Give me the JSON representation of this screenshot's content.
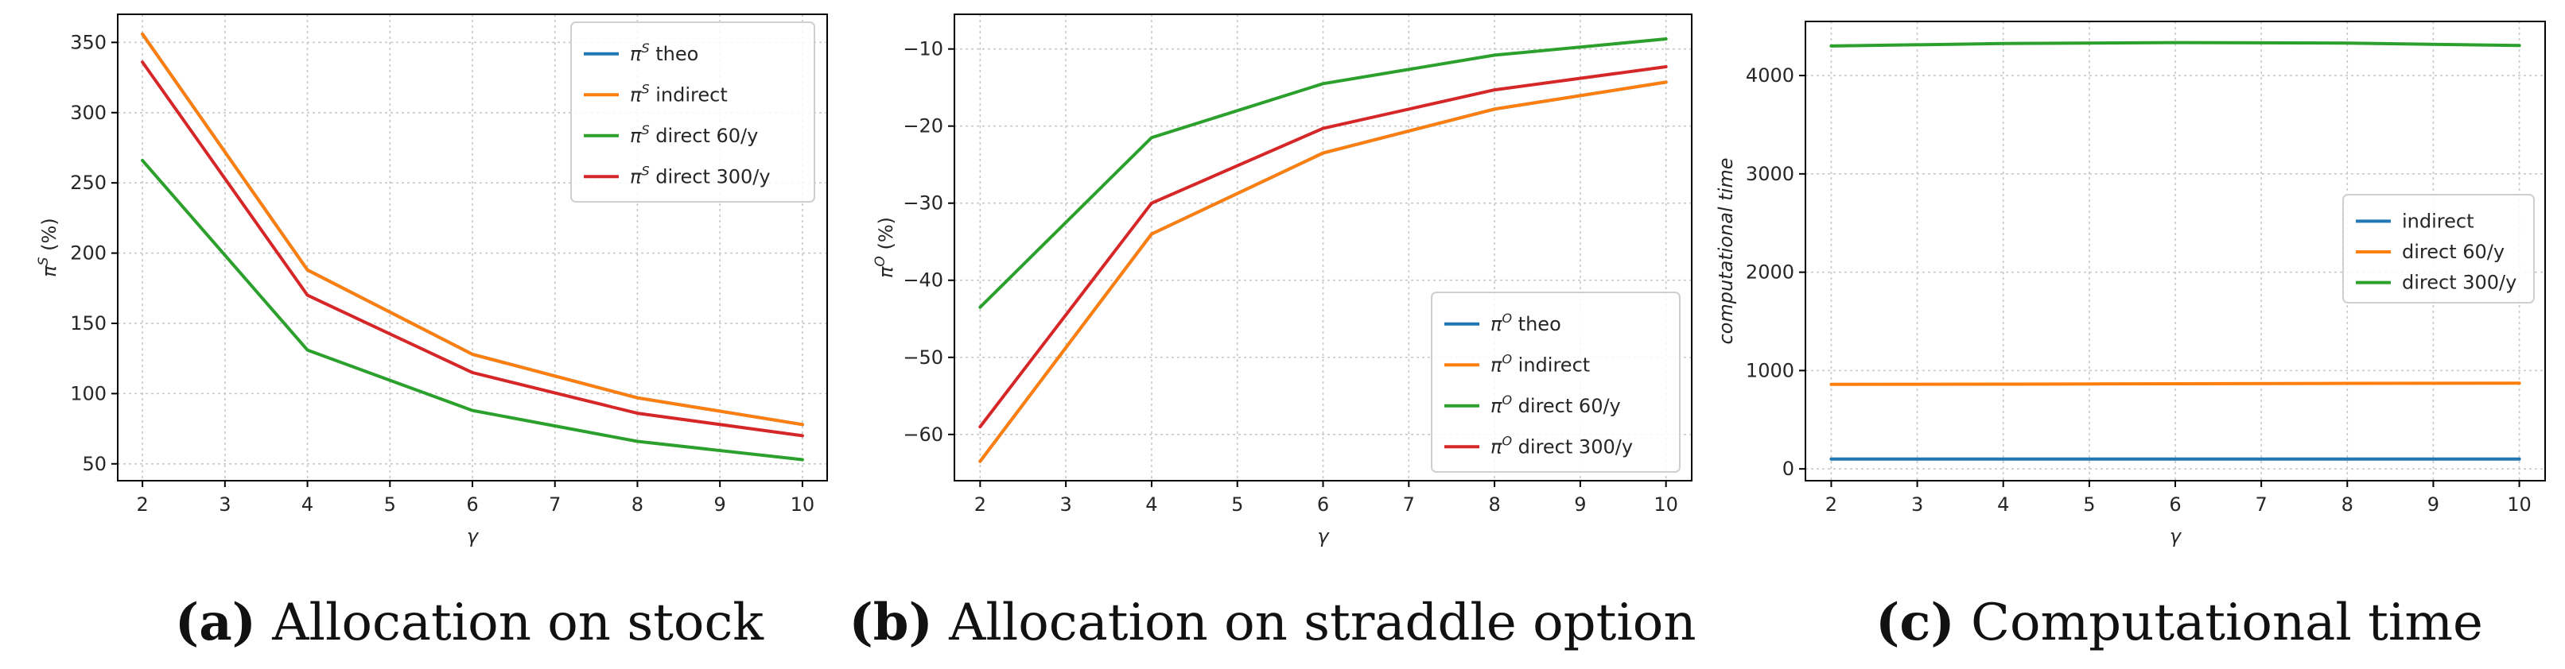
{
  "colors": {
    "theo": "#1f77b4",
    "indirect": "#ff7f0e",
    "direct60": "#2ca02c",
    "direct300": "#d62728"
  },
  "chart_data": [
    {
      "id": "a",
      "type": "line",
      "caption_letter": "(a)",
      "caption_text": " Allocation on stock",
      "xlabel": "γ",
      "ylabel": "π^S (%)",
      "xlim": [
        1.7,
        10.3
      ],
      "ylim": [
        38,
        370
      ],
      "xticks": [
        "2",
        "3",
        "4",
        "5",
        "6",
        "7",
        "8",
        "9",
        "10"
      ],
      "yticks": [
        "50",
        "100",
        "150",
        "200",
        "250",
        "300",
        "350"
      ],
      "legend_position": "upper right",
      "x": [
        2,
        4,
        6,
        8,
        10
      ],
      "series": [
        {
          "name": "π^S theo",
          "legend_main": "π",
          "legend_sup": "S",
          "legend_rest": " theo",
          "color_key": "theo",
          "values": [
            356,
            188,
            128,
            97,
            78
          ]
        },
        {
          "name": "π^S indirect",
          "legend_main": "π",
          "legend_sup": "S",
          "legend_rest": " indirect",
          "color_key": "indirect",
          "values": [
            356,
            188,
            128,
            97,
            78
          ]
        },
        {
          "name": "π^S direct 60/y",
          "legend_main": "π",
          "legend_sup": "S",
          "legend_rest": " direct 60/y",
          "color_key": "direct60",
          "values": [
            266,
            131,
            88,
            66,
            53
          ]
        },
        {
          "name": "π^S direct 300/y",
          "legend_main": "π",
          "legend_sup": "S",
          "legend_rest": " direct 300/y",
          "color_key": "direct300",
          "values": [
            336,
            170,
            115,
            86,
            70
          ]
        }
      ]
    },
    {
      "id": "b",
      "type": "line",
      "caption_letter": "(b)",
      "caption_text": " Allocation on straddle option",
      "xlabel": "γ",
      "ylabel": "π^O (%)",
      "xlim": [
        1.7,
        10.3
      ],
      "ylim": [
        -66,
        -5.5
      ],
      "xticks": [
        "2",
        "3",
        "4",
        "5",
        "6",
        "7",
        "8",
        "9",
        "10"
      ],
      "yticks": [
        "−60",
        "−50",
        "−40",
        "−30",
        "−20",
        "−10"
      ],
      "legend_position": "lower right",
      "x": [
        2,
        4,
        6,
        8,
        10
      ],
      "series": [
        {
          "name": "π^O theo",
          "legend_main": "π",
          "legend_sup": "O",
          "legend_rest": " theo",
          "color_key": "theo",
          "values": [
            -63.5,
            -34,
            -23.5,
            -17.8,
            -14.3
          ]
        },
        {
          "name": "π^O indirect",
          "legend_main": "π",
          "legend_sup": "O",
          "legend_rest": " indirect",
          "color_key": "indirect",
          "values": [
            -63.5,
            -34,
            -23.5,
            -17.8,
            -14.3
          ]
        },
        {
          "name": "π^O direct 60/y",
          "legend_main": "π",
          "legend_sup": "O",
          "legend_rest": " direct 60/y",
          "color_key": "direct60",
          "values": [
            -43.5,
            -21.5,
            -14.5,
            -10.8,
            -8.7
          ]
        },
        {
          "name": "π^O direct 300/y",
          "legend_main": "π",
          "legend_sup": "O",
          "legend_rest": " direct 300/y",
          "color_key": "direct300",
          "values": [
            -59,
            -30,
            -20.3,
            -15.3,
            -12.3
          ]
        }
      ]
    },
    {
      "id": "c",
      "type": "line",
      "caption_letter": "(c)",
      "caption_text": " Computational time",
      "xlabel": "γ",
      "ylabel": "computational time",
      "xlim": [
        1.7,
        10.3
      ],
      "ylim": [
        -120,
        4550
      ],
      "xticks": [
        "2",
        "3",
        "4",
        "5",
        "6",
        "7",
        "8",
        "9",
        "10"
      ],
      "yticks": [
        "0",
        "1000",
        "2000",
        "3000",
        "4000"
      ],
      "legend_position": "center right",
      "x": [
        2,
        4,
        6,
        8,
        10
      ],
      "series": [
        {
          "name": "indirect",
          "legend_main": "indirect",
          "legend_sup": "",
          "legend_rest": "",
          "color_key": "theo",
          "values": [
            100,
            100,
            100,
            100,
            100
          ]
        },
        {
          "name": "direct 60/y",
          "legend_main": "direct 60/y",
          "legend_sup": "",
          "legend_rest": "",
          "color_key": "indirect",
          "values": [
            860,
            862,
            866,
            870,
            872
          ]
        },
        {
          "name": "direct 300/y",
          "legend_main": "direct 300/y",
          "legend_sup": "",
          "legend_rest": "",
          "color_key": "direct60",
          "values": [
            4300,
            4325,
            4335,
            4330,
            4305
          ]
        }
      ]
    }
  ]
}
